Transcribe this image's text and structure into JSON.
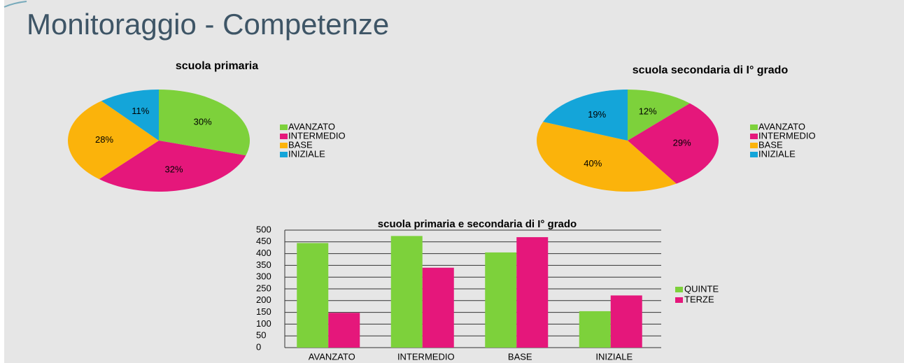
{
  "title": "Monitoraggio -  Competenze",
  "chart_data": [
    {
      "type": "pie",
      "title": "scuola primaria",
      "categories": [
        "AVANZATO",
        "INTERMEDIO",
        "BASE",
        "INIZIALE"
      ],
      "values": [
        30,
        32,
        28,
        11
      ],
      "value_labels": [
        "30%",
        "32%",
        "28%",
        "11%"
      ],
      "colors": [
        "#7dd13b",
        "#e5177b",
        "#fbb30b",
        "#14a5d9"
      ],
      "legend": "right"
    },
    {
      "type": "pie",
      "title": "scuola secondaria di I° grado",
      "categories": [
        "AVANZATO",
        "INTERMEDIO",
        "BASE",
        "INIZIALE"
      ],
      "values": [
        12,
        29,
        40,
        19
      ],
      "value_labels": [
        "12%",
        "29%",
        "40%",
        "19%"
      ],
      "colors": [
        "#7dd13b",
        "#e5177b",
        "#fbb30b",
        "#14a5d9"
      ],
      "legend": "right"
    },
    {
      "type": "bar",
      "title": "scuola primaria e secondaria di I° grado",
      "categories": [
        "AVANZATO",
        "INTERMEDIO",
        "BASE",
        "INIZIALE"
      ],
      "series": [
        {
          "name": "QUINTE",
          "color": "#7dd13b",
          "values": [
            445,
            475,
            405,
            155
          ]
        },
        {
          "name": "TERZE",
          "color": "#e5177b",
          "values": [
            148,
            340,
            470,
            222
          ]
        }
      ],
      "ylim": [
        0,
        500
      ],
      "yticks": [
        0,
        50,
        100,
        150,
        200,
        250,
        300,
        350,
        400,
        450,
        500
      ],
      "grid": true,
      "legend": "right"
    }
  ]
}
